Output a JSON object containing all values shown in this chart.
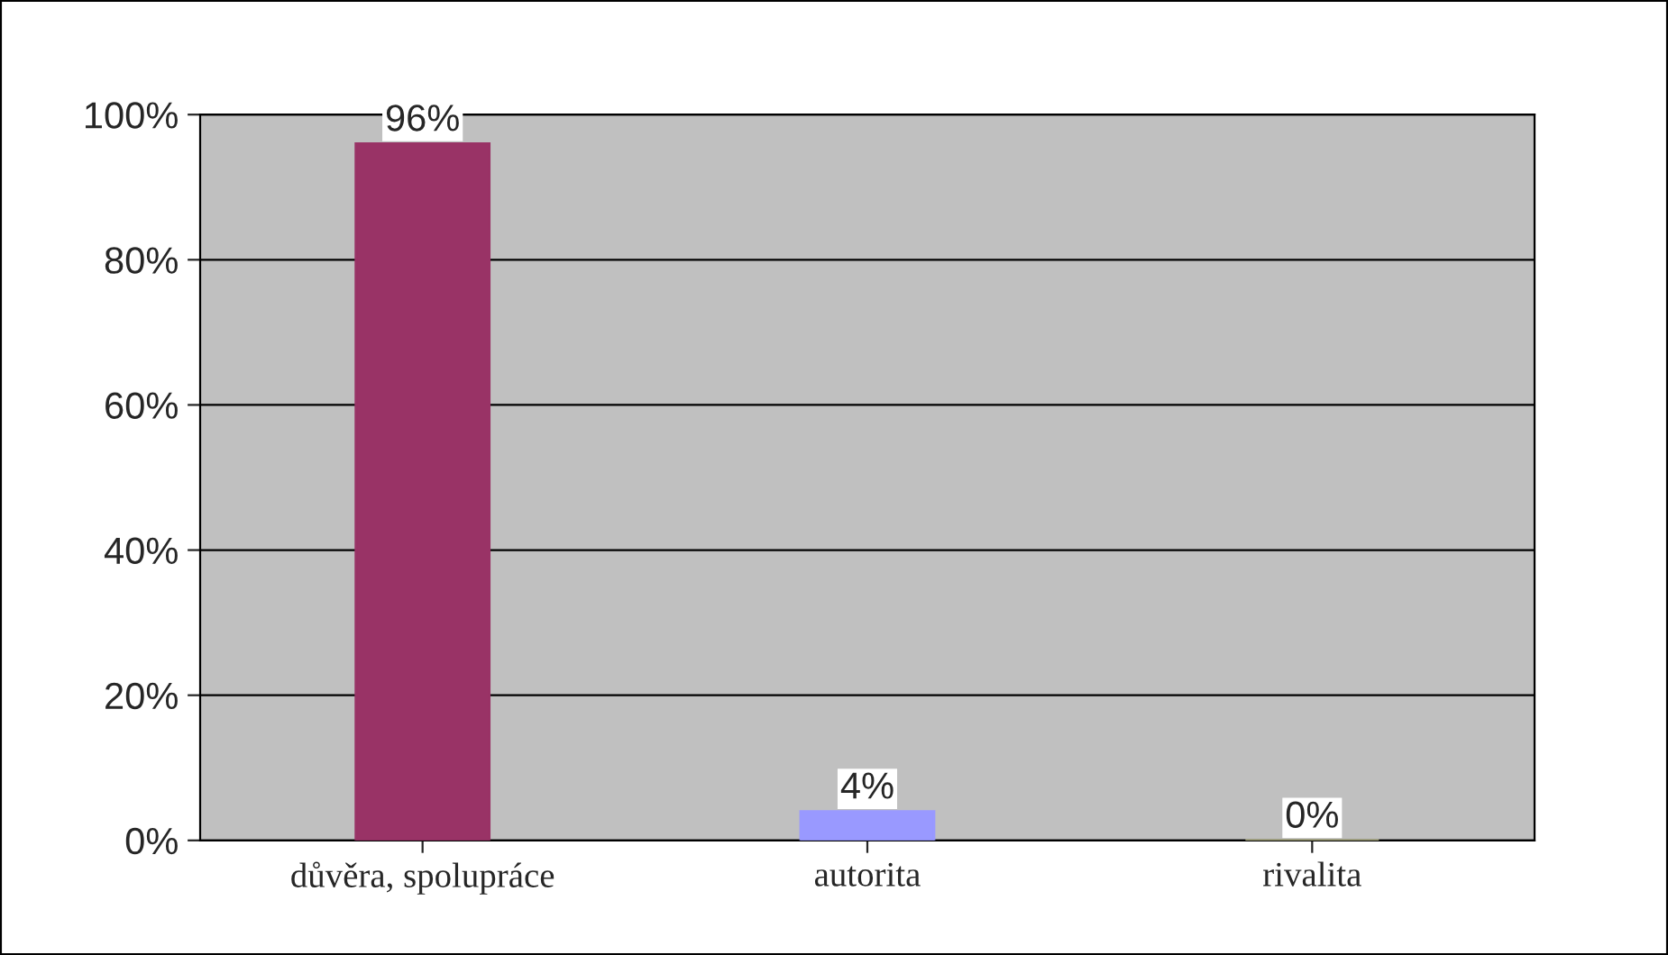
{
  "chart_data": {
    "type": "bar",
    "categories": [
      "důvěra, spolupráce",
      "autorita",
      "rivalita"
    ],
    "values": [
      96,
      4,
      0
    ],
    "colors": [
      "#993366",
      "#9999ff",
      "#cccc99"
    ],
    "value_labels": [
      "96%",
      "4%",
      "0%"
    ],
    "ylim": [
      0,
      100
    ],
    "yticks": [
      {
        "value": 0,
        "label": "0%"
      },
      {
        "value": 20,
        "label": "20%"
      },
      {
        "value": 40,
        "label": "40%"
      },
      {
        "value": 60,
        "label": "60%"
      },
      {
        "value": 80,
        "label": "80%"
      },
      {
        "value": 100,
        "label": "100%"
      }
    ],
    "grid": "y"
  }
}
